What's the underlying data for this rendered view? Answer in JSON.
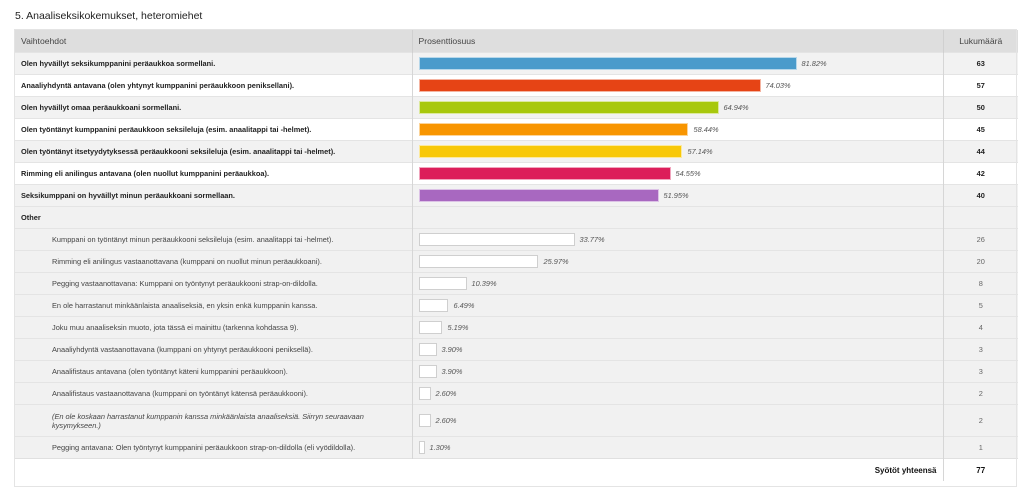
{
  "title": "5. Anaaliseksikokemukset, heteromiehet",
  "columns": {
    "options": "Vaihtoehdot",
    "percent": "Prosenttiosuus",
    "count": "Lukumäärä"
  },
  "chart_data": {
    "type": "bar",
    "orientation": "horizontal",
    "title": "5. Anaaliseksikokemukset, heteromiehet",
    "xlabel": "Prosenttiosuus",
    "ylabel": "Vaihtoehdot",
    "xlim": [
      0,
      100
    ],
    "unit": "%",
    "main_rows": [
      {
        "label": "Olen hyväillyt seksikumppanini peräaukkoa sormellani.",
        "percent": 81.82,
        "percent_label": "81.82%",
        "count": 63,
        "color": "#4a9bcb"
      },
      {
        "label": "Anaaliyhdyntä antavana (olen yhtynyt kumppanini peräaukkoon peniksellani).",
        "percent": 74.03,
        "percent_label": "74.03%",
        "count": 57,
        "color": "#e64415"
      },
      {
        "label": "Olen hyväillyt omaa peräaukkoani sormellani.",
        "percent": 64.94,
        "percent_label": "64.94%",
        "count": 50,
        "color": "#a8c80d"
      },
      {
        "label": "Olen työntänyt kumppanini peräaukkoon seksileluja (esim. anaalitappi tai -helmet).",
        "percent": 58.44,
        "percent_label": "58.44%",
        "count": 45,
        "color": "#f89500"
      },
      {
        "label": "Olen työntänyt itsetyydytyksessä peräaukkooni seksileluja (esim. anaalitappi tai -helmet).",
        "percent": 57.14,
        "percent_label": "57.14%",
        "count": 44,
        "color": "#f8c808"
      },
      {
        "label": "Rimming eli anilingus antavana (olen nuollut kumppanini peräaukkoa).",
        "percent": 54.55,
        "percent_label": "54.55%",
        "count": 42,
        "color": "#dc1e5a"
      },
      {
        "label": "Seksikumppani on hyväillyt minun peräaukkoani sormellaan.",
        "percent": 51.95,
        "percent_label": "51.95%",
        "count": 40,
        "color": "#a868c0"
      }
    ],
    "other_label": "Other",
    "other_rows": [
      {
        "label": "Kumppani on työntänyt minun peräaukkooni seksileluja (esim. anaalitappi tai -helmet).",
        "percent": 33.77,
        "percent_label": "33.77%",
        "count": 26
      },
      {
        "label": "Rimming eli anilingus vastaanottavana (kumppani on nuollut minun peräaukkoani).",
        "percent": 25.97,
        "percent_label": "25.97%",
        "count": 20
      },
      {
        "label": "Pegging vastaanottavana: Kumppani on työntynyt peräaukkooni strap-on-dildolla.",
        "percent": 10.39,
        "percent_label": "10.39%",
        "count": 8
      },
      {
        "label": "En ole harrastanut minkäänlaista anaaliseksiä, en yksin enkä kumppanin kanssa.",
        "percent": 6.49,
        "percent_label": "6.49%",
        "count": 5
      },
      {
        "label": "Joku muu anaaliseksin muoto, jota tässä ei mainittu (tarkenna kohdassa 9).",
        "percent": 5.19,
        "percent_label": "5.19%",
        "count": 4
      },
      {
        "label": "Anaaliyhdyntä vastaanottavana (kumppani on yhtynyt peräaukkooni peniksellä).",
        "percent": 3.9,
        "percent_label": "3.90%",
        "count": 3
      },
      {
        "label": "Anaalifistaus antavana (olen työntänyt käteni kumppanini peräaukkoon).",
        "percent": 3.9,
        "percent_label": "3.90%",
        "count": 3
      },
      {
        "label": "Anaalifistaus vastaanottavana (kumppani on työntänyt kätensä peräaukkooni).",
        "percent": 2.6,
        "percent_label": "2.60%",
        "count": 2
      },
      {
        "label": "(En ole koskaan harrastanut kumppanin kanssa minkäänlaista anaaliseksiä. Siirryn seuraavaan kysymykseen.)",
        "percent": 2.6,
        "percent_label": "2.60%",
        "count": 2,
        "italic": true
      },
      {
        "label": "Pegging antavana: Olen työntynyt kumppanini peräaukkoon strap-on-dildolla (eli vyödildolla).",
        "percent": 1.3,
        "percent_label": "1.30%",
        "count": 1
      }
    ]
  },
  "total": {
    "label": "Syötöt yhteensä",
    "value": "77"
  }
}
